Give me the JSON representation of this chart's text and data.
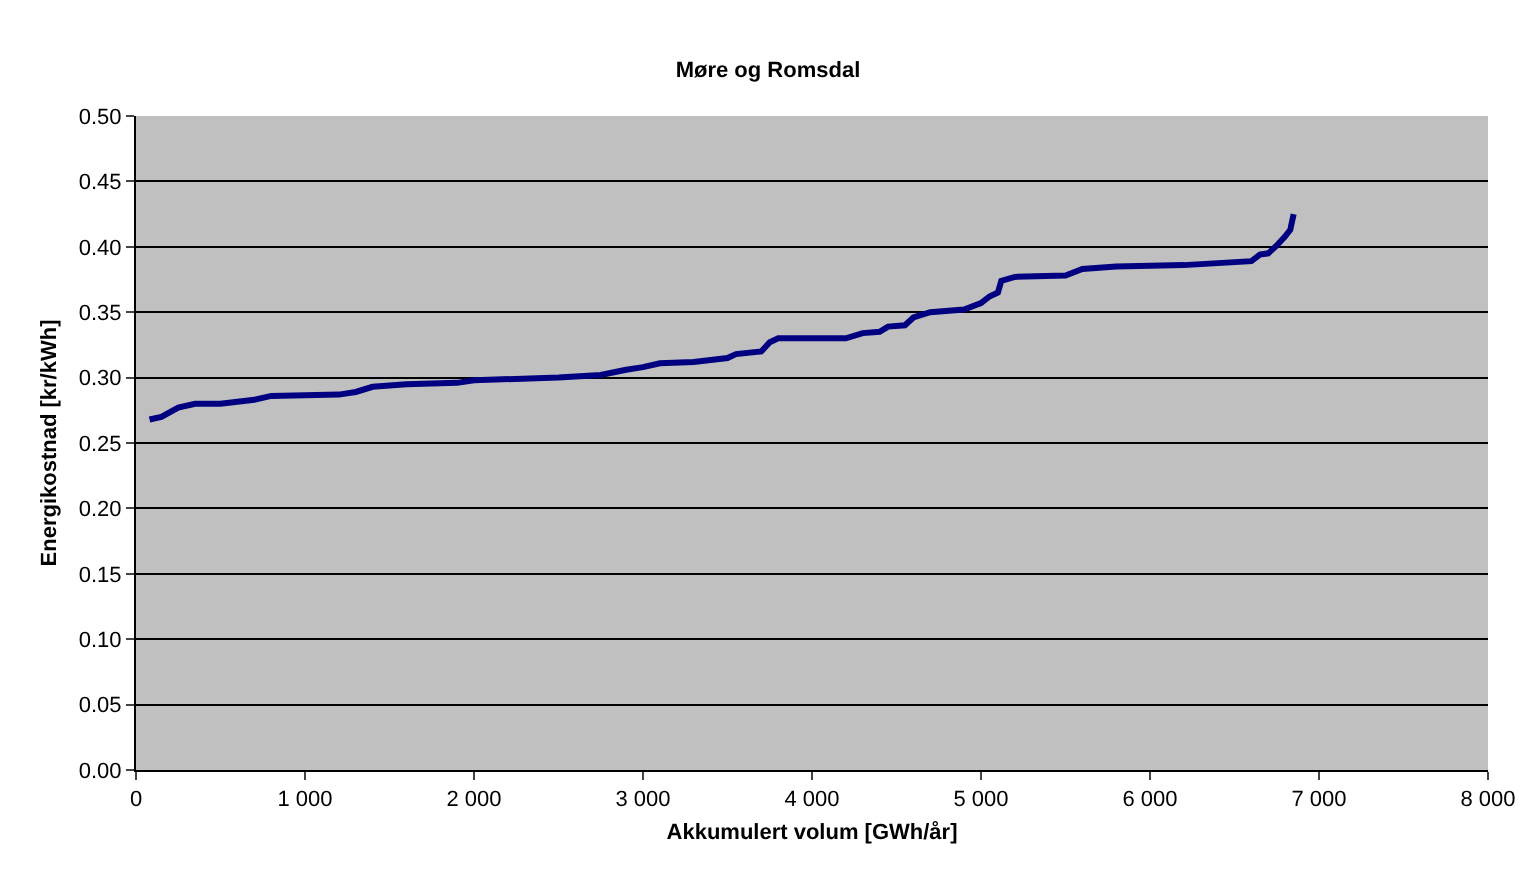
{
  "chart_data": {
    "type": "line",
    "title": "Møre og Romsdal",
    "xlabel": "Akkumulert volum [GWh/år]",
    "ylabel": "Energikostnad [kr/kWh]",
    "x": [
      80,
      150,
      250,
      350,
      500,
      700,
      800,
      1200,
      1300,
      1400,
      1600,
      1900,
      2000,
      2500,
      2750,
      2900,
      3000,
      3100,
      3300,
      3500,
      3550,
      3700,
      3750,
      3800,
      4200,
      4300,
      4400,
      4450,
      4550,
      4600,
      4700,
      4900,
      5000,
      5050,
      5100,
      5120,
      5200,
      5500,
      5600,
      5800,
      6200,
      6600,
      6650,
      6700,
      6750,
      6800,
      6830,
      6850
    ],
    "series": [
      {
        "color": "#000080",
        "values": [
          0.268,
          0.27,
          0.277,
          0.28,
          0.28,
          0.283,
          0.286,
          0.287,
          0.289,
          0.293,
          0.295,
          0.296,
          0.298,
          0.3,
          0.302,
          0.306,
          0.308,
          0.311,
          0.312,
          0.315,
          0.318,
          0.32,
          0.327,
          0.33,
          0.33,
          0.334,
          0.335,
          0.339,
          0.34,
          0.346,
          0.35,
          0.352,
          0.357,
          0.362,
          0.365,
          0.374,
          0.377,
          0.378,
          0.383,
          0.385,
          0.386,
          0.389,
          0.394,
          0.395,
          0.401,
          0.408,
          0.413,
          0.425
        ]
      }
    ],
    "xlim": [
      0,
      8000
    ],
    "xticks": [
      {
        "value": 0,
        "label": "0"
      },
      {
        "value": 1000,
        "label": "1 000"
      },
      {
        "value": 2000,
        "label": "2 000"
      },
      {
        "value": 3000,
        "label": "3 000"
      },
      {
        "value": 4000,
        "label": "4 000"
      },
      {
        "value": 5000,
        "label": "5 000"
      },
      {
        "value": 6000,
        "label": "6 000"
      },
      {
        "value": 7000,
        "label": "7 000"
      },
      {
        "value": 8000,
        "label": "8 000"
      }
    ],
    "ylim": [
      0,
      0.5
    ],
    "yticks": [
      {
        "value": 0,
        "label": "0.00"
      },
      {
        "value": 0.05,
        "label": "0.05"
      },
      {
        "value": 0.1,
        "label": "0.10"
      },
      {
        "value": 0.15,
        "label": "0.15"
      },
      {
        "value": 0.2,
        "label": "0.20"
      },
      {
        "value": 0.25,
        "label": "0.25"
      },
      {
        "value": 0.3,
        "label": "0.30"
      },
      {
        "value": 0.35,
        "label": "0.35"
      },
      {
        "value": 0.4,
        "label": "0.40"
      },
      {
        "value": 0.45,
        "label": "0.45"
      },
      {
        "value": 0.5,
        "label": "0.50"
      }
    ],
    "grid": "y",
    "marker": "none",
    "line_style": "solid"
  }
}
